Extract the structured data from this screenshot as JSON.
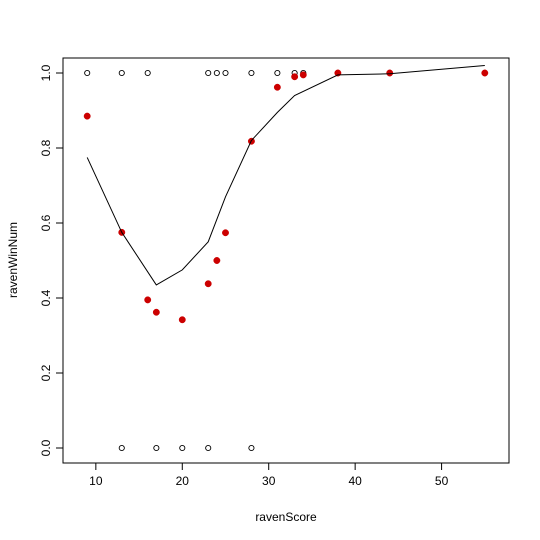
{
  "chart_data": {
    "type": "scatter",
    "xlabel": "ravenScore",
    "ylabel": "ravenWinNum",
    "xlim": [
      6.2,
      57.8
    ],
    "ylim": [
      -0.04,
      1.04
    ],
    "x_ticks": [
      10,
      20,
      30,
      40,
      50
    ],
    "x_tick_labels": [
      "10",
      "20",
      "30",
      "40",
      "50"
    ],
    "y_ticks": [
      0.0,
      0.2,
      0.4,
      0.6,
      0.8,
      1.0
    ],
    "y_tick_labels": [
      "0.0",
      "0.2",
      "0.4",
      "0.6",
      "0.8",
      "1.0"
    ],
    "grid": false,
    "legend": "none",
    "series": [
      {
        "style": "open-circle",
        "color": "#000000",
        "points": [
          [
            9,
            1.0
          ],
          [
            13,
            1.0
          ],
          [
            16,
            1.0
          ],
          [
            23,
            1.0
          ],
          [
            24,
            1.0
          ],
          [
            25,
            1.0
          ],
          [
            28,
            1.0
          ],
          [
            31,
            1.0
          ],
          [
            33,
            1.0
          ],
          [
            34,
            1.0
          ],
          [
            13,
            0.0
          ],
          [
            17,
            0.0
          ],
          [
            20,
            0.0
          ],
          [
            23,
            0.0
          ],
          [
            28,
            0.0
          ]
        ]
      },
      {
        "style": "filled-circle",
        "color": "#cc0000",
        "points": [
          [
            9,
            0.885
          ],
          [
            13,
            0.575
          ],
          [
            16,
            0.395
          ],
          [
            17,
            0.362
          ],
          [
            20,
            0.342
          ],
          [
            23,
            0.438
          ],
          [
            24,
            0.5
          ],
          [
            25,
            0.574
          ],
          [
            28,
            0.818
          ],
          [
            31,
            0.962
          ],
          [
            33,
            0.99
          ],
          [
            34,
            0.995
          ],
          [
            38,
            1.0
          ],
          [
            44,
            1.0
          ],
          [
            55,
            1.0
          ]
        ]
      },
      {
        "style": "line",
        "color": "#000000",
        "points": [
          [
            9,
            0.775
          ],
          [
            13,
            0.575
          ],
          [
            17,
            0.435
          ],
          [
            20,
            0.475
          ],
          [
            23,
            0.55
          ],
          [
            25,
            0.67
          ],
          [
            28,
            0.82
          ],
          [
            31,
            0.895
          ],
          [
            33,
            0.94
          ],
          [
            38,
            0.995
          ],
          [
            44,
            0.998
          ],
          [
            55,
            1.02
          ]
        ]
      }
    ]
  }
}
